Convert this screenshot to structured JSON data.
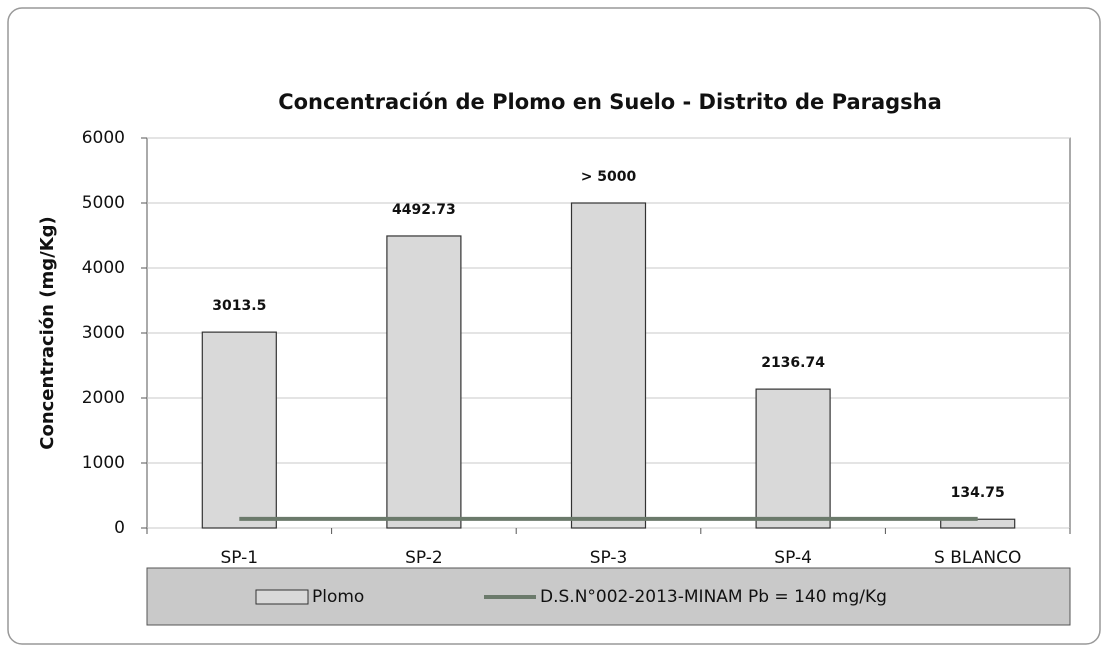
{
  "chart_data": {
    "type": "bar",
    "title": "Concentración de Plomo en Suelo  -  Distrito de Paragsha",
    "y_label": "Concentración (mg/Kg)",
    "categories": [
      "SP-1",
      "SP-2",
      "SP-3",
      "SP-4",
      "S BLANCO"
    ],
    "series": [
      {
        "name": "Plomo",
        "type": "bar",
        "color": "#d9d9d9",
        "values": [
          3013.5,
          4492.73,
          5000,
          2136.74,
          134.75
        ],
        "value_labels": [
          "3013.5",
          "4492.73",
          "> 5000",
          "2136.74",
          "134.75"
        ]
      },
      {
        "name": "D.S.N°002-2013-MINAM Pb = 140 mg/Kg",
        "type": "line",
        "color": "#6b7a6b",
        "values": [
          140,
          140,
          140,
          140,
          140
        ]
      }
    ],
    "ylim": [
      0,
      6000
    ],
    "yticks": [
      0,
      1000,
      2000,
      3000,
      4000,
      5000,
      6000
    ],
    "grid": true,
    "legend": "bottom"
  }
}
